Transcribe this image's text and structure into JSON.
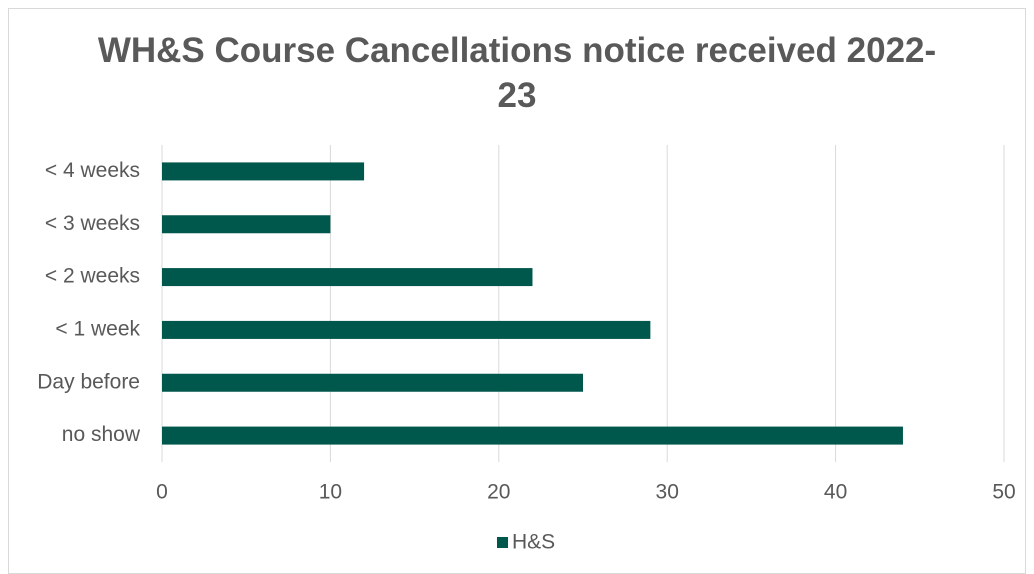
{
  "chart_data": {
    "type": "bar",
    "orientation": "horizontal",
    "title": "WH&S Course Cancellations notice received 2022-23",
    "categories": [
      "< 4 weeks",
      "< 3 weeks",
      "< 2 weeks",
      "< 1 week",
      "Day before",
      "no show"
    ],
    "series": [
      {
        "name": "H&S",
        "color": "#00574b",
        "values": [
          12,
          10,
          22,
          29,
          25,
          44
        ]
      }
    ],
    "xlim": [
      0,
      50
    ],
    "xticks": [
      0,
      10,
      20,
      30,
      40,
      50
    ],
    "grid": true,
    "legend": "bottom"
  }
}
